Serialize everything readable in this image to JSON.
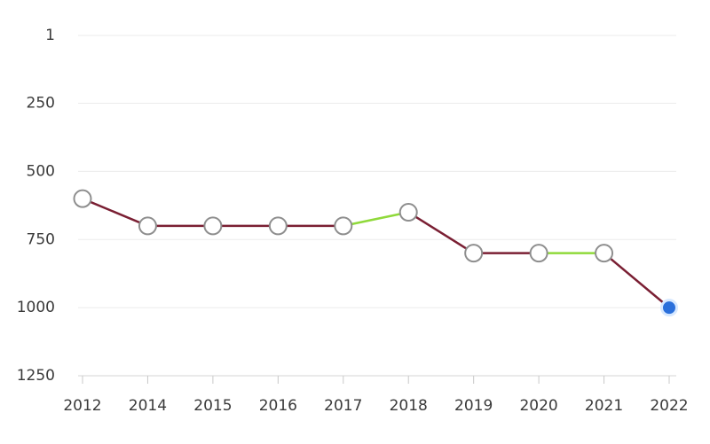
{
  "chart_data": {
    "type": "line",
    "title": "",
    "xlabel": "",
    "ylabel": "",
    "y_inverted": true,
    "ylim": [
      1250,
      1
    ],
    "y_ticks": [
      "1",
      "250",
      "500",
      "750",
      "1000",
      "1250"
    ],
    "categories": [
      "2012",
      "2014",
      "2015",
      "2016",
      "2017",
      "2018",
      "2019",
      "2020",
      "2021",
      "2022"
    ],
    "values": [
      600,
      700,
      700,
      700,
      700,
      650,
      800,
      800,
      800,
      1000
    ],
    "colors": {
      "worse": "#7a1f33",
      "better_or_same": "#8fd93a",
      "point_outline": "#8e8e8e",
      "current_point": "#2a6fdb",
      "grid": "#ebebeb"
    },
    "grid": true,
    "legend": "none"
  }
}
